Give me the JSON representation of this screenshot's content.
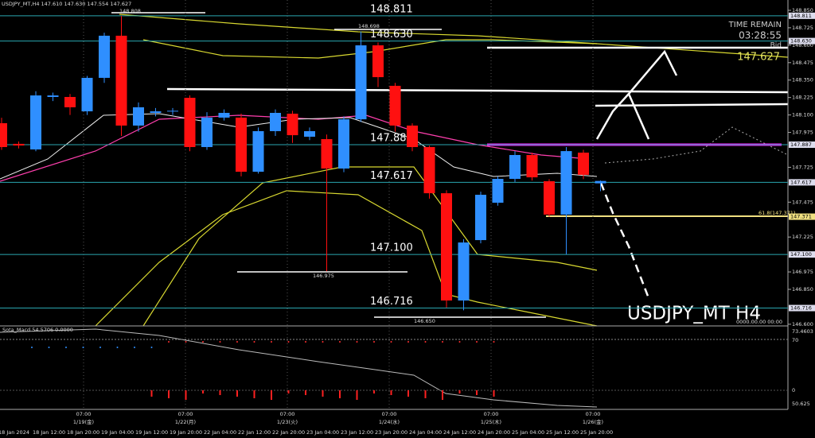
{
  "chart_data": {
    "type": "candlestick",
    "title": "USDJPY_MT,H4 147.610 147.630 147.554 147.627",
    "symbol_label": "USDJPY_MT H4",
    "time_remain_label": "TIME REMAIN",
    "time_remain": "03:28:55",
    "bid_label": "Bid",
    "bid": "147.627",
    "up_color": "#2f8fff",
    "down_color": "#ff1010",
    "categories": [
      "18 Jan 2024",
      null,
      "18 Jan 12:00",
      null,
      "18 Jan 20:00",
      null,
      "19 Jan 04:00",
      null,
      "19 Jan 12:00",
      null,
      "19 Jan 20:00",
      null,
      "22 Jan 04:00",
      null,
      "22 Jan 12:00",
      null,
      "22 Jan 20:00",
      null,
      "23 Jan 04:00",
      null,
      "23 Jan 12:00",
      null,
      "23 Jan 20:00",
      null,
      "24 Jan 04:00",
      null,
      "24 Jan 12:00",
      null,
      "24 Jan 20:00",
      null,
      "25 Jan 04:00",
      null,
      "25 Jan 12:00",
      null,
      "25 Jan 20:00",
      null
    ],
    "open": [
      148.041,
      147.893,
      147.853,
      148.229,
      148.229,
      148.126,
      148.366,
      148.668,
      148.024,
      148.115,
      148.126,
      148.223,
      147.87,
      148.081,
      148.081,
      147.693,
      147.984,
      148.109,
      147.944,
      147.927,
      147.716,
      148.069,
      148.599,
      148.309,
      148.024,
      147.87,
      147.539,
      146.77,
      147.203,
      147.471,
      147.642,
      147.813,
      147.625,
      147.386,
      147.83,
      147.61
    ],
    "high": [
      148.08,
      147.91,
      148.27,
      148.26,
      148.25,
      148.38,
      148.69,
      148.81,
      148.19,
      148.15,
      148.15,
      148.24,
      148.12,
      148.14,
      148.11,
      148.01,
      148.14,
      148.13,
      148.01,
      147.96,
      148.09,
      148.698,
      148.62,
      148.33,
      148.04,
      147.88,
      147.56,
      147.21,
      147.55,
      147.66,
      147.84,
      147.83,
      147.64,
      147.87,
      147.85,
      147.63
    ],
    "low": [
      147.85,
      147.86,
      147.84,
      148.2,
      148.1,
      148.1,
      148.33,
      147.95,
      147.98,
      148.09,
      148.1,
      147.84,
      147.85,
      148.06,
      147.66,
      147.68,
      147.95,
      147.9,
      147.92,
      146.98,
      147.69,
      148.05,
      148.3,
      147.98,
      147.84,
      147.5,
      146.72,
      146.7,
      147.18,
      147.45,
      147.62,
      147.63,
      147.37,
      147.1,
      147.64,
      147.554
    ],
    "close": [
      147.87,
      147.881,
      148.24,
      148.24,
      148.155,
      148.366,
      148.668,
      148.024,
      148.155,
      148.126,
      148.13,
      147.87,
      148.081,
      148.115,
      147.693,
      147.984,
      148.115,
      147.955,
      147.984,
      147.716,
      148.069,
      148.599,
      148.371,
      148.024,
      147.87,
      147.539,
      146.77,
      147.186,
      147.528,
      147.642,
      147.813,
      147.653,
      147.386,
      147.841,
      147.671,
      147.627
    ],
    "ylim": [
      146.588,
      148.924
    ],
    "yticks": [
      {
        "value": 148.85,
        "label": "148.850"
      },
      148.725,
      {
        "value": 148.6,
        "label": "148.600"
      },
      148.475,
      {
        "value": 148.35,
        "label": "148.350"
      },
      148.225,
      {
        "value": 148.1,
        "label": "148.100"
      },
      147.975,
      147.725,
      147.475,
      {
        "value": 147.225,
        "label": "147.225"
      },
      146.975,
      {
        "value": 146.85,
        "label": "146.850"
      },
      {
        "value": 146.6,
        "label": "146.600"
      }
    ],
    "levels": [
      {
        "value": 148.811,
        "label": "148.811"
      },
      {
        "value": 148.63,
        "label": "148.630"
      },
      {
        "value": 147.887,
        "label": "147.887"
      },
      {
        "value": 147.617,
        "label": "147.617"
      },
      {
        "value": 147.1,
        "label": "147.100"
      },
      {
        "value": 146.716,
        "label": "146.716"
      }
    ],
    "fib_level": {
      "value": 147.371,
      "label": "61.8(147.371)",
      "box": "147.371"
    },
    "annotations": [
      "148.808",
      "148.698",
      "146.975",
      "146.650",
      "0000.00.00 00:00"
    ],
    "sessions": [
      {
        "time": "07:00",
        "date": "1/19(金)"
      },
      {
        "time": "07:00",
        "date": "1/22(月)"
      },
      {
        "time": "07:00",
        "date": "1/23(火)"
      },
      {
        "time": "07:00",
        "date": "1/24(水)"
      },
      {
        "time": "07:00",
        "date": "1/25(木)"
      },
      {
        "time": "07:00",
        "date": "1/26(金)"
      }
    ],
    "indicator": {
      "label": "Sota_Macd 54.5706 0.0000",
      "scale_labels": [
        "73.4603",
        "70",
        "0",
        "50.625"
      ]
    }
  }
}
